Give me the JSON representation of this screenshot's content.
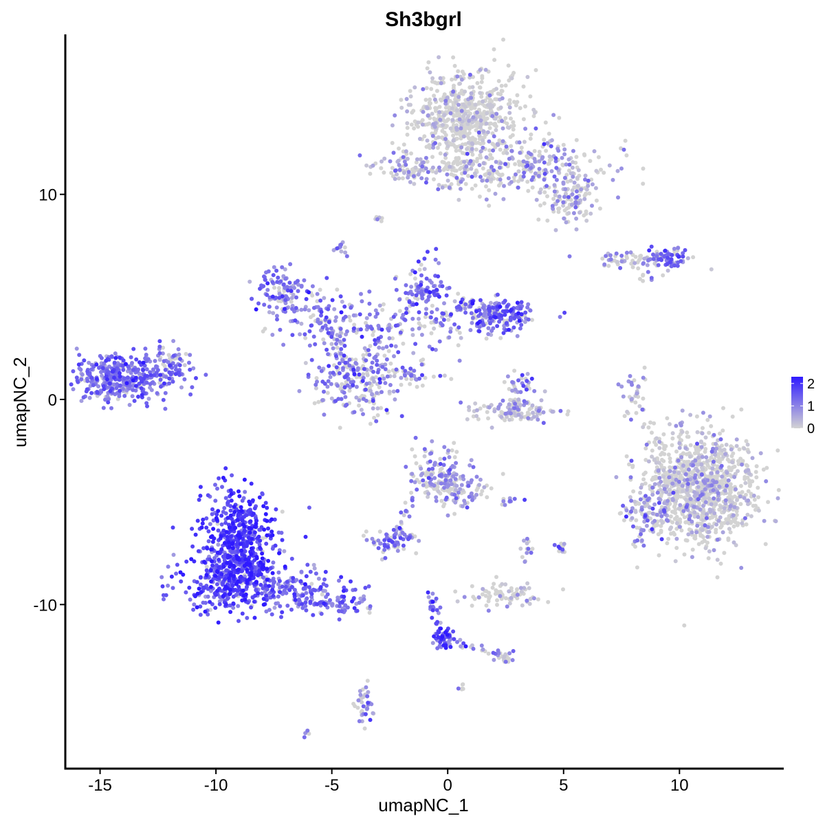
{
  "chart_data": {
    "type": "scatter",
    "title": "Sh3bgrl",
    "xlabel": "umapNC_1",
    "ylabel": "umapNC_2",
    "xlim": [
      -16.5,
      14.5
    ],
    "ylim": [
      -18.0,
      17.8
    ],
    "x_ticks": [
      -15,
      -10,
      -5,
      0,
      5,
      10
    ],
    "x_tick_labels": [
      "-15",
      "-10",
      "-5",
      "0",
      "5",
      "10"
    ],
    "y_ticks": [
      -10,
      0,
      10
    ],
    "y_tick_labels": [
      "-10",
      "0",
      "10"
    ],
    "grid": false,
    "legend": {
      "placement": "right",
      "type": "colorbar",
      "ticks": [
        0,
        1,
        2
      ],
      "tick_labels": [
        "0",
        "1",
        "2"
      ],
      "range": [
        0,
        2.3
      ],
      "low_color": "#d3d3d3",
      "high_color": "#2f1aff"
    },
    "clusters": [
      {
        "cx": 0.8,
        "cy": 13.8,
        "sx": 1.2,
        "sy": 1.1,
        "n": 620,
        "mean": 0.25,
        "gray": 0.75
      },
      {
        "cx": 3.2,
        "cy": 11.4,
        "sx": 1.8,
        "sy": 0.7,
        "n": 260,
        "mean": 0.8,
        "gray": 0.5
      },
      {
        "cx": 5.2,
        "cy": 9.8,
        "sx": 0.6,
        "sy": 0.6,
        "n": 120,
        "mean": 0.6,
        "gray": 0.55
      },
      {
        "cx": -2.0,
        "cy": 11.3,
        "sx": 0.8,
        "sy": 0.4,
        "n": 70,
        "mean": 0.7,
        "gray": 0.45
      },
      {
        "cx": 0.5,
        "cy": 11.0,
        "sx": 1.0,
        "sy": 0.4,
        "n": 60,
        "mean": 0.5,
        "gray": 0.6
      },
      {
        "cx": -3.0,
        "cy": 8.8,
        "sx": 0.1,
        "sy": 0.1,
        "n": 6,
        "mean": 0.6,
        "gray": 0.5
      },
      {
        "cx": -4.7,
        "cy": 7.4,
        "sx": 0.2,
        "sy": 0.2,
        "n": 14,
        "mean": 1.0,
        "gray": 0.3
      },
      {
        "cx": 8.2,
        "cy": 6.8,
        "sx": 1.0,
        "sy": 0.2,
        "n": 70,
        "mean": 0.8,
        "gray": 0.4
      },
      {
        "cx": 9.6,
        "cy": 6.9,
        "sx": 0.4,
        "sy": 0.25,
        "n": 60,
        "mean": 1.3,
        "gray": 0.15
      },
      {
        "cx": 8.6,
        "cy": 6.0,
        "sx": 0.3,
        "sy": 0.2,
        "n": 8,
        "mean": 1.0,
        "gray": 0.3
      },
      {
        "cx": -7.2,
        "cy": 5.2,
        "sx": 0.6,
        "sy": 0.6,
        "n": 110,
        "mean": 1.2,
        "gray": 0.15
      },
      {
        "cx": -5.5,
        "cy": 4.0,
        "sx": 0.9,
        "sy": 0.6,
        "n": 90,
        "mean": 1.1,
        "gray": 0.2
      },
      {
        "cx": -1.0,
        "cy": 5.4,
        "sx": 0.6,
        "sy": 0.7,
        "n": 80,
        "mean": 1.2,
        "gray": 0.2
      },
      {
        "cx": 1.5,
        "cy": 4.0,
        "sx": 1.5,
        "sy": 0.5,
        "n": 120,
        "mean": 1.1,
        "gray": 0.25
      },
      {
        "cx": 2.2,
        "cy": 4.2,
        "sx": 0.5,
        "sy": 0.4,
        "n": 90,
        "mean": 1.4,
        "gray": 0.1
      },
      {
        "cx": -3.0,
        "cy": 3.2,
        "sx": 1.6,
        "sy": 0.8,
        "n": 120,
        "mean": 1.0,
        "gray": 0.3
      },
      {
        "cx": -4.5,
        "cy": 1.0,
        "sx": 0.7,
        "sy": 0.9,
        "n": 110,
        "mean": 1.1,
        "gray": 0.25
      },
      {
        "cx": -3.4,
        "cy": 0.8,
        "sx": 0.6,
        "sy": 0.8,
        "n": 110,
        "mean": 1.0,
        "gray": 0.3
      },
      {
        "cx": -1.5,
        "cy": 1.1,
        "sx": 0.8,
        "sy": 0.4,
        "n": 24,
        "mean": 0.9,
        "gray": 0.35
      },
      {
        "cx": -14.0,
        "cy": 1.0,
        "sx": 1.0,
        "sy": 0.6,
        "n": 380,
        "mean": 1.2,
        "gray": 0.1
      },
      {
        "cx": -12.0,
        "cy": 1.6,
        "sx": 0.5,
        "sy": 0.5,
        "n": 70,
        "mean": 1.0,
        "gray": 0.2
      },
      {
        "cx": 2.8,
        "cy": -0.6,
        "sx": 1.0,
        "sy": 0.3,
        "n": 110,
        "mean": 0.6,
        "gray": 0.5
      },
      {
        "cx": 3.2,
        "cy": 0.5,
        "sx": 0.3,
        "sy": 0.5,
        "n": 35,
        "mean": 1.0,
        "gray": 0.3
      },
      {
        "cx": 8.1,
        "cy": 0.2,
        "sx": 0.25,
        "sy": 0.6,
        "n": 35,
        "mean": 0.6,
        "gray": 0.5
      },
      {
        "cx": 10.9,
        "cy": -4.3,
        "sx": 1.2,
        "sy": 1.4,
        "n": 1050,
        "mean": 0.4,
        "gray": 0.65
      },
      {
        "cx": 8.6,
        "cy": -5.5,
        "sx": 0.5,
        "sy": 0.8,
        "n": 90,
        "mean": 0.8,
        "gray": 0.35
      },
      {
        "cx": -0.4,
        "cy": -3.8,
        "sx": 0.6,
        "sy": 0.7,
        "n": 150,
        "mean": 0.9,
        "gray": 0.35
      },
      {
        "cx": 0.9,
        "cy": -4.5,
        "sx": 0.6,
        "sy": 0.5,
        "n": 60,
        "mean": 0.7,
        "gray": 0.45
      },
      {
        "cx": -2.3,
        "cy": -6.9,
        "sx": 0.5,
        "sy": 0.3,
        "n": 60,
        "mean": 1.0,
        "gray": 0.3
      },
      {
        "cx": 2.8,
        "cy": -5.0,
        "sx": 0.3,
        "sy": 0.15,
        "n": 10,
        "mean": 1.0,
        "gray": 0.3
      },
      {
        "cx": 3.4,
        "cy": -7.3,
        "sx": 0.15,
        "sy": 0.4,
        "n": 14,
        "mean": 0.6,
        "gray": 0.5
      },
      {
        "cx": 4.9,
        "cy": -7.2,
        "sx": 0.15,
        "sy": 0.2,
        "n": 10,
        "mean": 0.7,
        "gray": 0.5
      },
      {
        "cx": 2.3,
        "cy": -9.5,
        "sx": 0.7,
        "sy": 0.3,
        "n": 80,
        "mean": 0.4,
        "gray": 0.65
      },
      {
        "cx": -9.0,
        "cy": -6.8,
        "sx": 0.8,
        "sy": 1.2,
        "n": 480,
        "mean": 1.8,
        "gray": 0.02
      },
      {
        "cx": -9.5,
        "cy": -8.8,
        "sx": 1.0,
        "sy": 0.8,
        "n": 320,
        "mean": 1.6,
        "gray": 0.03
      },
      {
        "cx": -6.5,
        "cy": -9.3,
        "sx": 1.3,
        "sy": 0.5,
        "n": 170,
        "mean": 1.3,
        "gray": 0.08
      },
      {
        "cx": -4.5,
        "cy": -10.0,
        "sx": 0.6,
        "sy": 0.3,
        "n": 50,
        "mean": 1.2,
        "gray": 0.1
      },
      {
        "cx": -0.2,
        "cy": -11.6,
        "sx": 0.2,
        "sy": 0.3,
        "n": 40,
        "mean": 1.7,
        "gray": 0.05
      },
      {
        "cx": 2.4,
        "cy": -12.6,
        "sx": 0.3,
        "sy": 0.15,
        "n": 20,
        "mean": 0.8,
        "gray": 0.4
      },
      {
        "cx": -3.6,
        "cy": -14.8,
        "sx": 0.2,
        "sy": 0.5,
        "n": 40,
        "mean": 0.9,
        "gray": 0.35
      },
      {
        "cx": 0.6,
        "cy": -14.1,
        "sx": 0.1,
        "sy": 0.1,
        "n": 6,
        "mean": 1.0,
        "gray": 0.3
      },
      {
        "cx": -6.1,
        "cy": -16.3,
        "sx": 0.1,
        "sy": 0.1,
        "n": 5,
        "mean": 0.8,
        "gray": 0.3
      }
    ],
    "bridges": [
      {
        "from": [
          -0.9,
          -9.3
        ],
        "to": [
          -0.2,
          -11.7
        ],
        "n": 30,
        "mean": 1.3,
        "gray": 0.1
      },
      {
        "from": [
          -0.1,
          -11.8
        ],
        "to": [
          2.3,
          -12.4
        ],
        "n": 22,
        "mean": 1.0,
        "gray": 0.3
      },
      {
        "from": [
          -2.0,
          1.5
        ],
        "to": [
          -1.3,
          0.9
        ],
        "n": 18,
        "mean": 0.9,
        "gray": 0.3
      },
      {
        "from": [
          -0.6,
          5.8
        ],
        "to": [
          -3.0,
          2.8
        ],
        "n": 35,
        "mean": 1.1,
        "gray": 0.25
      },
      {
        "from": [
          -2.4,
          -6.8
        ],
        "to": [
          -1.4,
          -4.8
        ],
        "n": 22,
        "mean": 1.1,
        "gray": 0.2
      },
      {
        "from": [
          -0.5,
          4.0
        ],
        "to": [
          1.5,
          5.0
        ],
        "n": 25,
        "mean": 1.0,
        "gray": 0.25
      }
    ]
  }
}
